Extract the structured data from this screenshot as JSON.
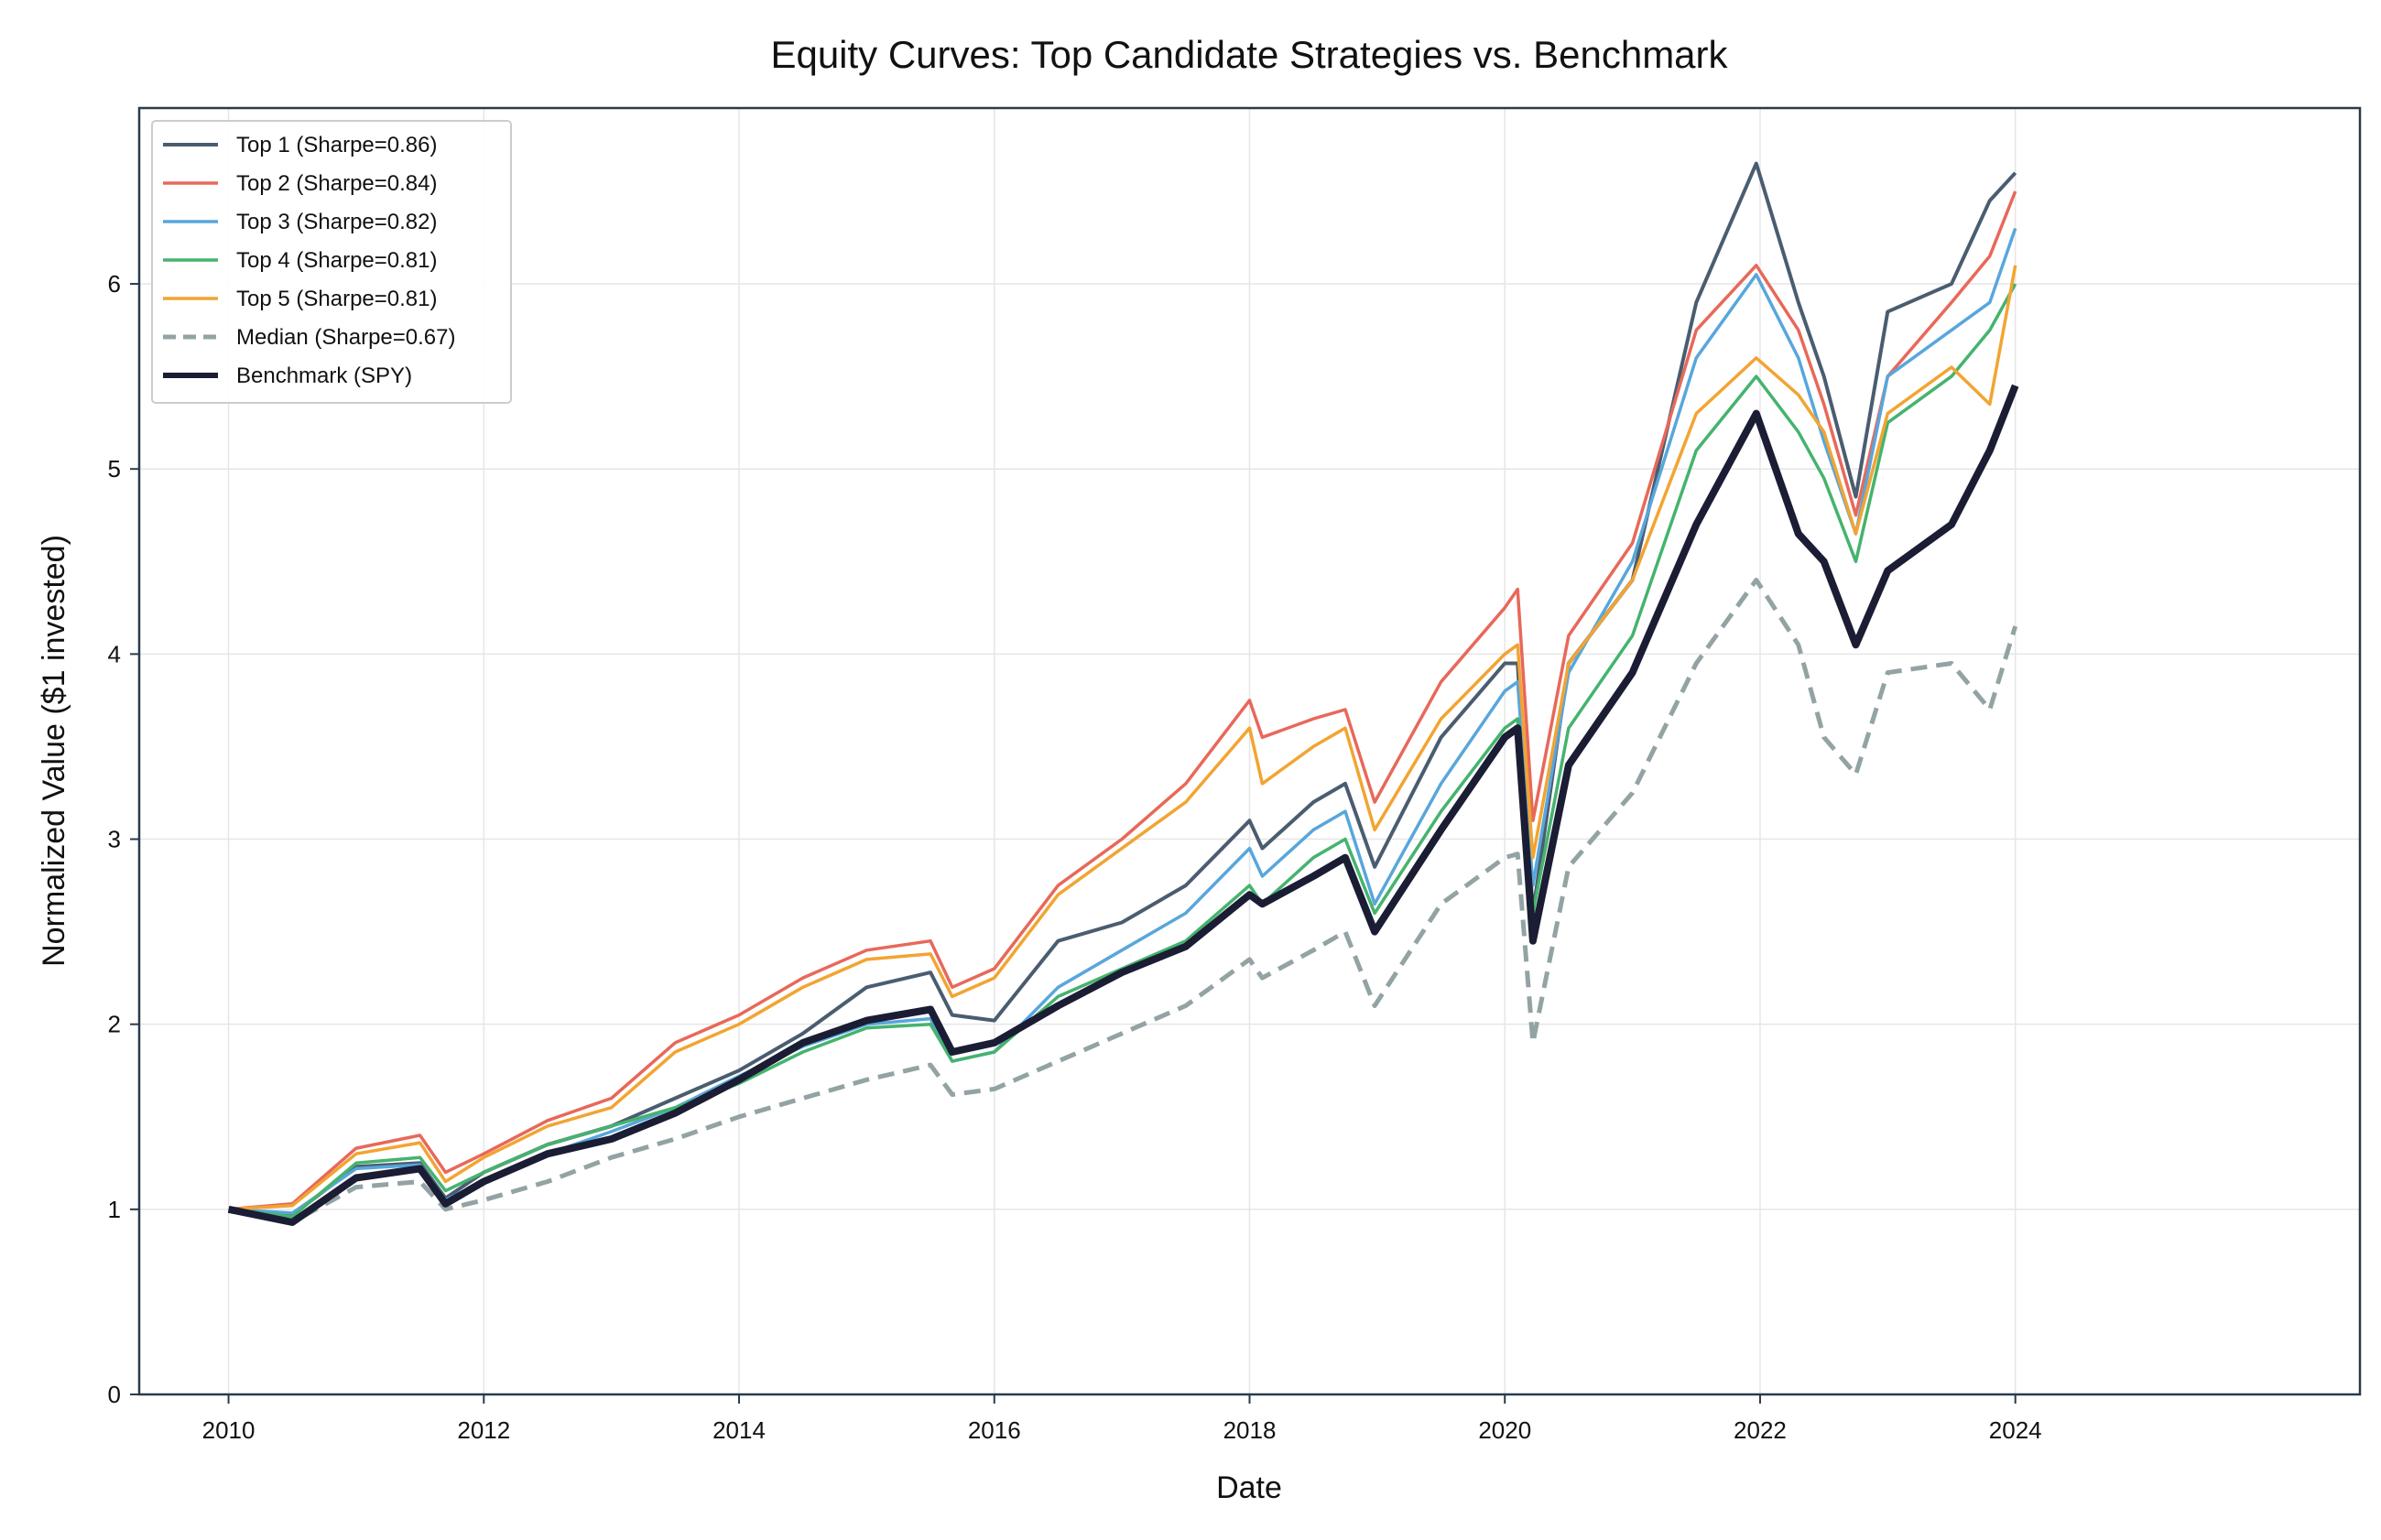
{
  "chart_data": {
    "type": "line",
    "title": "Equity Curves: Top Candidate Strategies vs. Benchmark",
    "xlabel": "Date",
    "ylabel": "Normalized Value ($1 invested)",
    "xlim": [
      2009.3,
      2026.7
    ],
    "ylim": [
      0,
      6.95
    ],
    "x_ticks": [
      "2010",
      "2012",
      "2014",
      "2016",
      "2018",
      "2020",
      "2022",
      "2024"
    ],
    "y_ticks": [
      "0",
      "1",
      "2",
      "3",
      "4",
      "5",
      "6"
    ],
    "grid": true,
    "legend_position": "top-left",
    "x": [
      2010.0,
      2010.5,
      2011.0,
      2011.5,
      2011.7,
      2012.0,
      2012.5,
      2013.0,
      2013.5,
      2014.0,
      2014.5,
      2015.0,
      2015.5,
      2015.67,
      2016.0,
      2016.5,
      2017.0,
      2017.5,
      2018.0,
      2018.1,
      2018.5,
      2018.75,
      2018.98,
      2019.5,
      2020.0,
      2020.1,
      2020.22,
      2020.5,
      2021.0,
      2021.5,
      2021.97,
      2022.3,
      2022.5,
      2022.75,
      2023.0,
      2023.5,
      2023.8,
      2024.0
    ],
    "series": [
      {
        "name": "Top 1 (Sharpe=0.86)",
        "color": "#4a5d70",
        "dash": "solid",
        "width": 4,
        "values": [
          1.0,
          0.97,
          1.23,
          1.25,
          1.06,
          1.2,
          1.35,
          1.45,
          1.6,
          1.75,
          1.95,
          2.2,
          2.28,
          2.05,
          2.02,
          2.45,
          2.55,
          2.75,
          3.1,
          2.95,
          3.2,
          3.3,
          2.85,
          3.55,
          3.95,
          3.95,
          2.6,
          3.95,
          4.4,
          5.9,
          6.65,
          5.9,
          5.5,
          4.85,
          5.85,
          6.0,
          6.45,
          6.6
        ]
      },
      {
        "name": "Top 2 (Sharpe=0.84)",
        "color": "#e8685a",
        "dash": "solid",
        "width": 3.5,
        "values": [
          1.0,
          1.03,
          1.33,
          1.4,
          1.2,
          1.3,
          1.48,
          1.6,
          1.9,
          2.05,
          2.25,
          2.4,
          2.45,
          2.2,
          2.3,
          2.75,
          3.0,
          3.3,
          3.75,
          3.55,
          3.65,
          3.7,
          3.2,
          3.85,
          4.25,
          4.35,
          3.1,
          4.1,
          4.6,
          5.75,
          6.1,
          5.75,
          5.35,
          4.75,
          5.5,
          5.9,
          6.15,
          6.5
        ]
      },
      {
        "name": "Top 3 (Sharpe=0.82)",
        "color": "#58a6dc",
        "dash": "solid",
        "width": 3.5,
        "values": [
          1.0,
          0.98,
          1.22,
          1.24,
          1.05,
          1.15,
          1.3,
          1.42,
          1.55,
          1.72,
          1.88,
          2.0,
          2.03,
          1.8,
          1.85,
          2.2,
          2.4,
          2.6,
          2.95,
          2.8,
          3.05,
          3.15,
          2.65,
          3.3,
          3.8,
          3.85,
          2.75,
          3.9,
          4.5,
          5.6,
          6.05,
          5.6,
          5.15,
          4.65,
          5.5,
          5.75,
          5.9,
          6.3
        ]
      },
      {
        "name": "Top 4 (Sharpe=0.81)",
        "color": "#45b36e",
        "dash": "solid",
        "width": 3.5,
        "values": [
          1.0,
          0.96,
          1.25,
          1.28,
          1.1,
          1.2,
          1.35,
          1.45,
          1.55,
          1.68,
          1.85,
          1.98,
          2.0,
          1.8,
          1.85,
          2.15,
          2.3,
          2.45,
          2.75,
          2.65,
          2.9,
          3.0,
          2.6,
          3.15,
          3.6,
          3.65,
          2.6,
          3.6,
          4.1,
          5.1,
          5.5,
          5.2,
          4.95,
          4.5,
          5.25,
          5.5,
          5.75,
          6.0
        ]
      },
      {
        "name": "Top 5 (Sharpe=0.81)",
        "color": "#f2a432",
        "dash": "solid",
        "width": 3.5,
        "values": [
          1.0,
          1.02,
          1.3,
          1.36,
          1.15,
          1.28,
          1.45,
          1.55,
          1.85,
          2.0,
          2.2,
          2.35,
          2.38,
          2.15,
          2.25,
          2.7,
          2.95,
          3.2,
          3.6,
          3.3,
          3.5,
          3.6,
          3.05,
          3.65,
          4.0,
          4.05,
          2.9,
          3.95,
          4.4,
          5.3,
          5.6,
          5.4,
          5.2,
          4.65,
          5.3,
          5.55,
          5.35,
          6.1
        ]
      },
      {
        "name": "Median (Sharpe=0.67)",
        "color": "#93a3a4",
        "dash": "dashed",
        "width": 5,
        "values": [
          1.0,
          0.93,
          1.12,
          1.15,
          1.0,
          1.05,
          1.15,
          1.28,
          1.38,
          1.5,
          1.6,
          1.7,
          1.78,
          1.62,
          1.65,
          1.8,
          1.95,
          2.1,
          2.35,
          2.25,
          2.4,
          2.5,
          2.1,
          2.65,
          2.9,
          2.92,
          1.9,
          2.85,
          3.25,
          3.95,
          4.4,
          4.05,
          3.55,
          3.35,
          3.9,
          3.95,
          3.7,
          4.15
        ]
      },
      {
        "name": "Benchmark (SPY)",
        "color": "#1a1d33",
        "dash": "solid",
        "width": 8,
        "values": [
          1.0,
          0.93,
          1.17,
          1.22,
          1.03,
          1.15,
          1.3,
          1.38,
          1.52,
          1.7,
          1.9,
          2.02,
          2.08,
          1.85,
          1.9,
          2.1,
          2.28,
          2.42,
          2.7,
          2.65,
          2.8,
          2.9,
          2.5,
          3.05,
          3.55,
          3.6,
          2.45,
          3.4,
          3.9,
          4.7,
          5.3,
          4.65,
          4.5,
          4.05,
          4.45,
          4.7,
          5.1,
          5.45
        ]
      }
    ]
  }
}
